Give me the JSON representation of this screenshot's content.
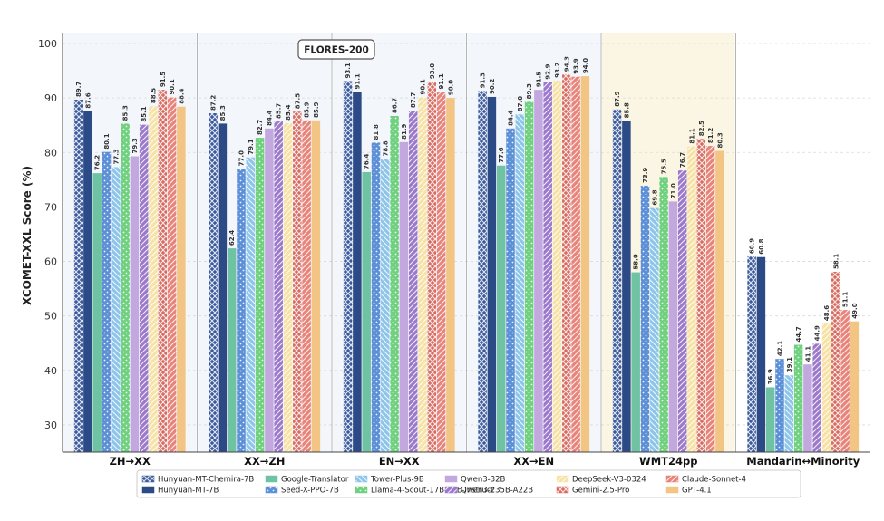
{
  "chart_data": {
    "type": "bar",
    "title": "FLORES-200",
    "ylabel": "XCOMET-XXL Score (%)",
    "xlabel": "",
    "ylim": [
      25,
      102
    ],
    "yticks": [
      30,
      40,
      50,
      60,
      70,
      80,
      90,
      100
    ],
    "categories": [
      "ZH→XX",
      "XX→ZH",
      "EN→XX",
      "XX→EN",
      "WMT24pp",
      "Mandarin↔Minority"
    ],
    "flores_categories": [
      "ZH→XX",
      "XX→ZH",
      "EN→XX",
      "XX→EN"
    ],
    "highlight_category": "WMT24pp",
    "legend_position": "bottom-center",
    "series": [
      {
        "name": "Hunyuan-MT-Chemira-7B",
        "color": "#3a5a9c",
        "pattern": "cross",
        "values": [
          89.7,
          87.2,
          93.1,
          91.3,
          87.9,
          60.9
        ]
      },
      {
        "name": "Hunyuan-MT-7B",
        "color": "#2b4a86",
        "pattern": "solid",
        "values": [
          87.6,
          85.3,
          91.1,
          90.2,
          85.8,
          60.8
        ]
      },
      {
        "name": "Google-Translator",
        "color": "#6fc3a3",
        "pattern": "solid",
        "values": [
          76.2,
          62.4,
          76.4,
          77.6,
          58.0,
          36.9
        ]
      },
      {
        "name": "Seed-X-PPO-7B",
        "color": "#5b8fd6",
        "pattern": "dots",
        "values": [
          80.1,
          77.0,
          81.8,
          84.4,
          73.9,
          42.1
        ]
      },
      {
        "name": "Tower-Plus-9B",
        "color": "#8cc4ec",
        "pattern": "backslash",
        "values": [
          77.3,
          79.1,
          78.8,
          87.0,
          69.8,
          39.1
        ]
      },
      {
        "name": "Llama-4-Scout-17B-16E-Instruct",
        "color": "#6fd07e",
        "pattern": "dots",
        "values": [
          85.3,
          82.7,
          86.7,
          89.3,
          75.5,
          44.7
        ]
      },
      {
        "name": "Qwen3-32B",
        "color": "#c3a8e0",
        "pattern": "solid",
        "values": [
          79.3,
          84.4,
          81.9,
          91.5,
          71.0,
          41.1
        ]
      },
      {
        "name": "Qwen3-235B-A22B",
        "color": "#9b78cc",
        "pattern": "slash",
        "values": [
          85.1,
          85.7,
          87.7,
          92.9,
          76.7,
          44.9
        ]
      },
      {
        "name": "DeepSeek-V3-0324",
        "color": "#f7e2a6",
        "pattern": "slash",
        "values": [
          88.5,
          85.4,
          90.1,
          93.2,
          81.1,
          48.6
        ]
      },
      {
        "name": "Gemini-2.5-Pro",
        "color": "#d96a60",
        "pattern": "cross",
        "values": [
          91.5,
          87.5,
          93.0,
          94.3,
          82.5,
          58.1
        ]
      },
      {
        "name": "Claude-Sonnet-4",
        "color": "#e8837a",
        "pattern": "slash",
        "values": [
          90.1,
          85.9,
          91.1,
          93.9,
          81.2,
          51.1
        ]
      },
      {
        "name": "GPT-4.1",
        "color": "#f2c585",
        "pattern": "solid",
        "values": [
          88.4,
          85.9,
          90.0,
          94.0,
          80.3,
          49.0
        ]
      }
    ]
  }
}
